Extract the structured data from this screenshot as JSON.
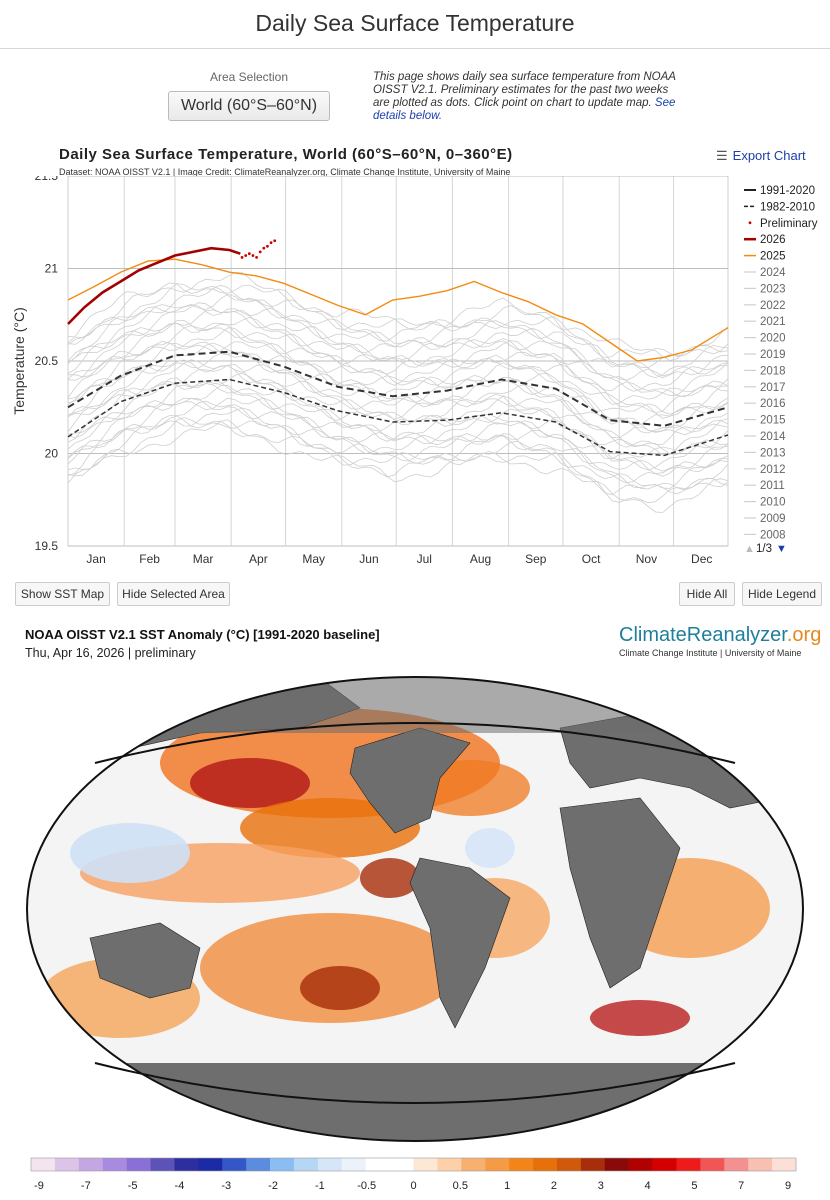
{
  "page": {
    "title": "Daily Sea Surface Temperature",
    "area_label": "Area Selection",
    "area_value": "World (60°S–60°N)",
    "intro_text": "This page shows daily sea surface temperature from NOAA OISST V2.1. Preliminary estimates for the past two weeks are plotted as dots. Click point on chart to update map.",
    "intro_link": "See details below."
  },
  "toolbar": {
    "export_label": "Export Chart"
  },
  "buttons": {
    "show_map": "Show SST Map",
    "hide_area": "Hide Selected Area",
    "hide_all": "Hide All",
    "hide_legend": "Hide Legend"
  },
  "colors": {
    "y2026": "#a30000",
    "y2025": "#f28c10",
    "climo": "#333333",
    "other_years": "#cfcfcf",
    "prelim": "#cc0000",
    "land": "#6e6e6e",
    "link": "#1a3fa8"
  },
  "chart_data": {
    "type": "line",
    "title": "Daily Sea Surface Temperature, World (60°S–60°N, 0–360°E)",
    "subtitle": "Dataset: NOAA OISST V2.1 | Image Credit: ClimateReanalyzer.org, Climate Change Institute, University of Maine",
    "ylabel": "Temperature (°C)",
    "ylim": [
      19.5,
      21.5
    ],
    "yticks": [
      "19.5",
      "20",
      "20.5",
      "21",
      "21.5"
    ],
    "months": [
      "Jan",
      "Feb",
      "Mar",
      "Apr",
      "May",
      "Jun",
      "Jul",
      "Aug",
      "Sep",
      "Oct",
      "Nov",
      "Dec"
    ],
    "grid": true,
    "legend_position": "right",
    "legend": [
      "1991-2020",
      "1982-2010",
      "Preliminary",
      "2026",
      "2025",
      "2024",
      "2023",
      "2022",
      "2021",
      "2020",
      "2019",
      "2018",
      "2017",
      "2016",
      "2015",
      "2014",
      "2013",
      "2012",
      "2011",
      "2010",
      "2009",
      "2008"
    ],
    "legend_page": "1/3",
    "series": [
      {
        "name": "1991-2020",
        "style": "dashed-bold",
        "x": [
          1,
          30,
          60,
          90,
          120,
          150,
          180,
          210,
          240,
          270,
          300,
          330,
          365
        ],
        "values": [
          20.25,
          20.42,
          20.53,
          20.55,
          20.47,
          20.36,
          20.31,
          20.34,
          20.4,
          20.35,
          20.18,
          20.15,
          20.25
        ]
      },
      {
        "name": "1982-2010",
        "style": "dashed",
        "x": [
          1,
          30,
          60,
          90,
          120,
          150,
          180,
          210,
          240,
          270,
          300,
          330,
          365
        ],
        "values": [
          20.09,
          20.28,
          20.38,
          20.4,
          20.33,
          20.23,
          20.17,
          20.18,
          20.22,
          20.17,
          20.01,
          19.99,
          20.1
        ]
      },
      {
        "name": "2025",
        "style": "solid",
        "x": [
          1,
          15,
          30,
          45,
          60,
          75,
          90,
          105,
          120,
          135,
          150,
          165,
          180,
          195,
          210,
          225,
          240,
          255,
          270,
          285,
          300,
          315,
          330,
          345,
          365
        ],
        "values": [
          20.83,
          20.9,
          20.98,
          21.04,
          21.05,
          21.02,
          20.98,
          20.96,
          20.92,
          20.86,
          20.8,
          20.75,
          20.83,
          20.85,
          20.88,
          20.93,
          20.87,
          20.82,
          20.75,
          20.7,
          20.6,
          20.5,
          20.52,
          20.56,
          20.68
        ]
      },
      {
        "name": "2026",
        "style": "solid-bold",
        "x": [
          1,
          10,
          20,
          30,
          40,
          50,
          60,
          70,
          80,
          90,
          96
        ],
        "values": [
          20.7,
          20.79,
          20.87,
          20.93,
          20.99,
          21.03,
          21.07,
          21.09,
          21.11,
          21.1,
          21.08
        ]
      },
      {
        "name": "Preliminary",
        "style": "dots",
        "x": [
          97,
          99,
          101,
          103,
          105,
          107,
          109,
          111,
          113,
          115
        ],
        "values": [
          21.06,
          21.07,
          21.08,
          21.07,
          21.06,
          21.09,
          21.11,
          21.12,
          21.14,
          21.15
        ]
      }
    ]
  },
  "map": {
    "title": "NOAA OISST V2.1 SST Anomaly (°C) [1991-2020 baseline]",
    "date": "Thu, Apr 16, 2026 | preliminary",
    "logo_main": "ClimateReanalyzer",
    "logo_suffix": ".org",
    "logo_sub": "Climate Change Institute | University of Maine"
  },
  "colorbar": {
    "labels": [
      "-9",
      "-7",
      "-5",
      "-4",
      "-3",
      "-2",
      "-1",
      "-0.5",
      "0",
      "0.5",
      "1",
      "2",
      "3",
      "4",
      "5",
      "7",
      "9"
    ],
    "colors": [
      "#f3e4ef",
      "#dcc4e8",
      "#c4a6e2",
      "#a88be0",
      "#8a70d6",
      "#5d52b8",
      "#2e2f9e",
      "#1b2aa5",
      "#3457c7",
      "#5a8de0",
      "#8cbdf2",
      "#b5d6f5",
      "#d6e6f8",
      "#ecf2fa",
      "#ffffff",
      "#ffffff",
      "#fde8d5",
      "#fcd0a8",
      "#f8b070",
      "#f59a45",
      "#f28418",
      "#e8700a",
      "#d05a0a",
      "#a82d0a",
      "#8a0a0a",
      "#b00000",
      "#d40000",
      "#ee1b1b",
      "#f25555",
      "#f59090",
      "#f8c0b0",
      "#fce0d8"
    ]
  }
}
